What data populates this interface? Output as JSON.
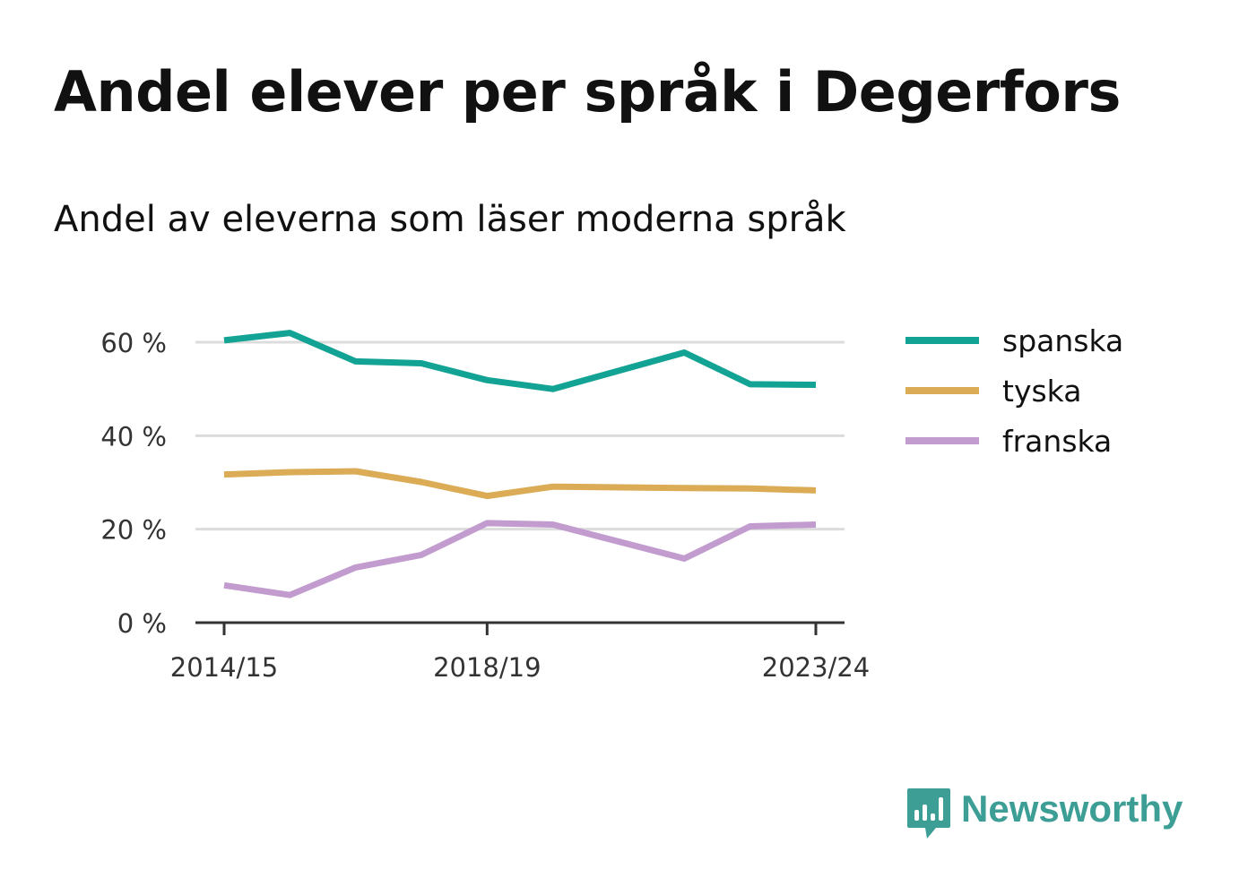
{
  "header": {
    "title": "Andel elever per språk i Degerfors",
    "subtitle": "Andel av eleverna som läser moderna språk"
  },
  "brand": {
    "name": "Newsworthy",
    "logo_icon": "newsworthy-bar-chart-icon",
    "color": "#3d9e96"
  },
  "chart_data": {
    "type": "line",
    "x": [
      "2014/15",
      "2015/16",
      "2016/17",
      "2017/18",
      "2018/19",
      "2019/20",
      "2020/21",
      "2021/22",
      "2022/23",
      "2023/24"
    ],
    "x_tick_labels": [
      "2014/15",
      "2018/19",
      "2023/24"
    ],
    "y_ticks": [
      0,
      20,
      40,
      60
    ],
    "y_tick_labels": [
      "0 %",
      "20 %",
      "40 %",
      "60 %"
    ],
    "ylim": [
      0,
      60
    ],
    "grid": true,
    "legend_position": "right",
    "series": [
      {
        "name": "spanska",
        "color": "#12a394",
        "values": [
          60.4,
          62.0,
          55.9,
          55.5,
          51.9,
          50.0,
          null,
          57.8,
          51.0,
          50.9
        ]
      },
      {
        "name": "tyska",
        "color": "#dbab55",
        "values": [
          31.7,
          32.2,
          32.4,
          30.1,
          27.1,
          29.1,
          null,
          28.8,
          28.7,
          28.3
        ]
      },
      {
        "name": "franska",
        "color": "#c29ccf",
        "values": [
          8.0,
          5.9,
          11.8,
          14.5,
          21.3,
          21.0,
          null,
          13.7,
          20.6,
          21.0
        ]
      }
    ]
  }
}
